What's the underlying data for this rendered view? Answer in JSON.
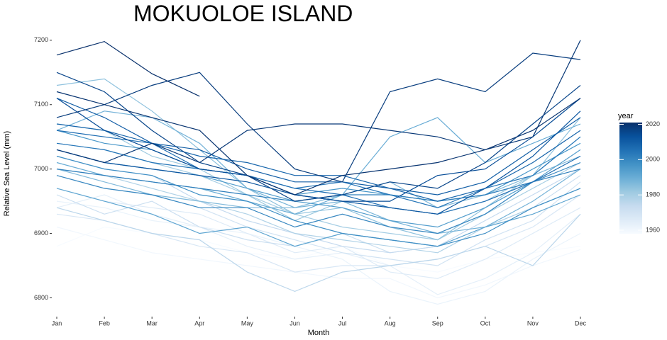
{
  "chart_data": {
    "type": "line",
    "title": "MOKUOLOE ISLAND",
    "x_label": "Month",
    "y_label": "Relative Sea Level (mm)",
    "categories": [
      "Jan",
      "Feb",
      "Mar",
      "Apr",
      "May",
      "Jun",
      "Jul",
      "Aug",
      "Sep",
      "Oct",
      "Nov",
      "Dec"
    ],
    "ylim": [
      6773,
      7213
    ],
    "yticks": [
      6800,
      6900,
      7000,
      7100,
      7200
    ],
    "color_scale": {
      "title": "year",
      "lim": [
        1958,
        2021
      ],
      "ticks": [
        1960,
        1980,
        2000,
        2020
      ],
      "colors": [
        "#f7fbff",
        "#deebf7",
        "#c6dbef",
        "#9ecae1",
        "#6baed6",
        "#4292c6",
        "#2171b5",
        "#08519c",
        "#08306b"
      ]
    },
    "series": [
      {
        "year": 1958,
        "values": [
          6880,
          6910,
          6900,
          6890,
          6870,
          6860,
          6880,
          6850,
          6840,
          6860,
          6870,
          6880
        ]
      },
      {
        "year": 1960,
        "values": [
          6910,
          6890,
          6870,
          6860,
          6850,
          6840,
          6830,
          6830,
          6800,
          6820,
          6850,
          6875
        ]
      },
      {
        "year": 1962,
        "values": [
          6950,
          6940,
          6920,
          6910,
          6900,
          6880,
          6860,
          6810,
          6790,
          6810,
          6860,
          6900
        ]
      },
      {
        "year": 1964,
        "values": [
          6940,
          6960,
          6930,
          6910,
          6880,
          6860,
          6870,
          6850,
          6805,
          6830,
          6870,
          6930
        ]
      },
      {
        "year": 1966,
        "values": [
          6970,
          6950,
          6940,
          6930,
          6900,
          6870,
          6880,
          6840,
          6830,
          6860,
          6900,
          6940
        ]
      },
      {
        "year": 1968,
        "values": [
          6930,
          6920,
          6900,
          6880,
          6870,
          6840,
          6850,
          6850,
          6860,
          6880,
          6910,
          6960
        ]
      },
      {
        "year": 1970,
        "values": [
          6990,
          6970,
          6960,
          6940,
          6910,
          6890,
          6870,
          6860,
          6850,
          6890,
          6920,
          6980
        ]
      },
      {
        "year": 1972,
        "values": [
          6960,
          6930,
          6950,
          6910,
          6890,
          6880,
          6900,
          6870,
          6880,
          6910,
          6940,
          6990
        ]
      },
      {
        "year": 1974,
        "values": [
          7020,
          7000,
          6990,
          6950,
          6920,
          6900,
          6880,
          6870,
          6880,
          6920,
          6960,
          7000
        ]
      },
      {
        "year": 1976,
        "values": [
          6940,
          6920,
          6900,
          6890,
          6840,
          6810,
          6840,
          6850,
          6860,
          6880,
          6850,
          6930
        ]
      },
      {
        "year": 1978,
        "values": [
          7000,
          6990,
          6970,
          6950,
          6930,
          6900,
          6890,
          6880,
          6870,
          6910,
          6940,
          6970
        ]
      },
      {
        "year": 1980,
        "values": [
          7040,
          7030,
          7010,
          6990,
          6960,
          6930,
          6910,
          6900,
          6890,
          6930,
          6970,
          7010
        ]
      },
      {
        "year": 1982,
        "values": [
          7070,
          7060,
          7020,
          7000,
          6960,
          6920,
          6950,
          6940,
          6930,
          6950,
          6990,
          7050
        ]
      },
      {
        "year": 1984,
        "values": [
          7130,
          7140,
          7090,
          7030,
          6970,
          6930,
          6940,
          6910,
          6890,
          6940,
          6990,
          7080
        ]
      },
      {
        "year": 1986,
        "values": [
          7000,
          6980,
          6960,
          6950,
          6940,
          6940,
          6960,
          6980,
          6940,
          6960,
          6990,
          7020
        ]
      },
      {
        "year": 1988,
        "values": [
          7060,
          7090,
          7080,
          7040,
          6970,
          6940,
          6950,
          6920,
          6900,
          6910,
          6950,
          7000
        ]
      },
      {
        "year": 1990,
        "values": [
          7010,
          6990,
          6980,
          6970,
          6950,
          6930,
          6960,
          7050,
          7080,
          7010,
          7040,
          7070
        ]
      },
      {
        "year": 1992,
        "values": [
          6970,
          6950,
          6930,
          6900,
          6910,
          6880,
          6900,
          6890,
          6880,
          6910,
          6930,
          6960
        ]
      },
      {
        "year": 1994,
        "values": [
          7030,
          7010,
          7000,
          6990,
          6970,
          6950,
          6940,
          6920,
          6910,
          6940,
          6980,
          7030
        ]
      },
      {
        "year": 1996,
        "values": [
          7060,
          7040,
          7030,
          7000,
          6990,
          6960,
          6970,
          6960,
          6950,
          6960,
          7000,
          7040
        ]
      },
      {
        "year": 1998,
        "values": [
          7020,
          7000,
          6990,
          6960,
          6950,
          6920,
          6900,
          6890,
          6880,
          6900,
          6940,
          6970
        ]
      },
      {
        "year": 2000,
        "values": [
          6990,
          6970,
          6960,
          6940,
          6940,
          6910,
          6930,
          6910,
          6900,
          6930,
          6980,
          7010
        ]
      },
      {
        "year": 2002,
        "values": [
          7000,
          6990,
          6980,
          6970,
          6960,
          6950,
          6960,
          6960,
          6950,
          6960,
          6980,
          7000
        ]
      },
      {
        "year": 2004,
        "values": [
          7040,
          7030,
          7010,
          7000,
          6990,
          6970,
          6980,
          6960,
          6940,
          6970,
          6990,
          7050
        ]
      },
      {
        "year": 2006,
        "values": [
          7060,
          7050,
          7040,
          7000,
          6990,
          6970,
          6960,
          6940,
          6930,
          6950,
          6980,
          7020
        ]
      },
      {
        "year": 2008,
        "values": [
          7070,
          7060,
          7040,
          7020,
          7010,
          6990,
          6990,
          6970,
          6950,
          6970,
          7010,
          7060
        ]
      },
      {
        "year": 2010,
        "values": [
          7110,
          7080,
          7040,
          7030,
          7000,
          6980,
          6980,
          6970,
          6960,
          6980,
          7030,
          7080
        ]
      },
      {
        "year": 2012,
        "values": [
          7030,
          7010,
          7000,
          6990,
          6980,
          6960,
          6950,
          6940,
          6930,
          6970,
          7020,
          7090
        ]
      },
      {
        "year": 2014,
        "values": [
          7110,
          7060,
          7030,
          7000,
          6990,
          6960,
          6950,
          6950,
          6990,
          7000,
          7050,
          7110
        ]
      },
      {
        "year": 2016,
        "values": [
          7150,
          7120,
          7060,
          7010,
          6990,
          6950,
          6960,
          6980,
          6970,
          7010,
          7070,
          7130
        ]
      },
      {
        "year": 2018,
        "values": [
          7080,
          7100,
          7130,
          7150,
          7070,
          7000,
          6980,
          7120,
          7140,
          7120,
          7180,
          7170
        ]
      },
      {
        "year": 2019,
        "values": [
          7030,
          7010,
          7040,
          7010,
          7060,
          7070,
          7070,
          7060,
          7050,
          7030,
          7050,
          7200
        ]
      },
      {
        "year": 2020,
        "values": [
          7120,
          7100,
          7080,
          7060,
          6990,
          6960,
          6990,
          7000,
          7010,
          7030,
          7060,
          7110
        ]
      },
      {
        "year": 2021,
        "values": [
          7177,
          7198,
          7148,
          7113,
          null,
          null,
          null,
          null,
          null,
          null,
          null,
          null
        ]
      }
    ]
  }
}
